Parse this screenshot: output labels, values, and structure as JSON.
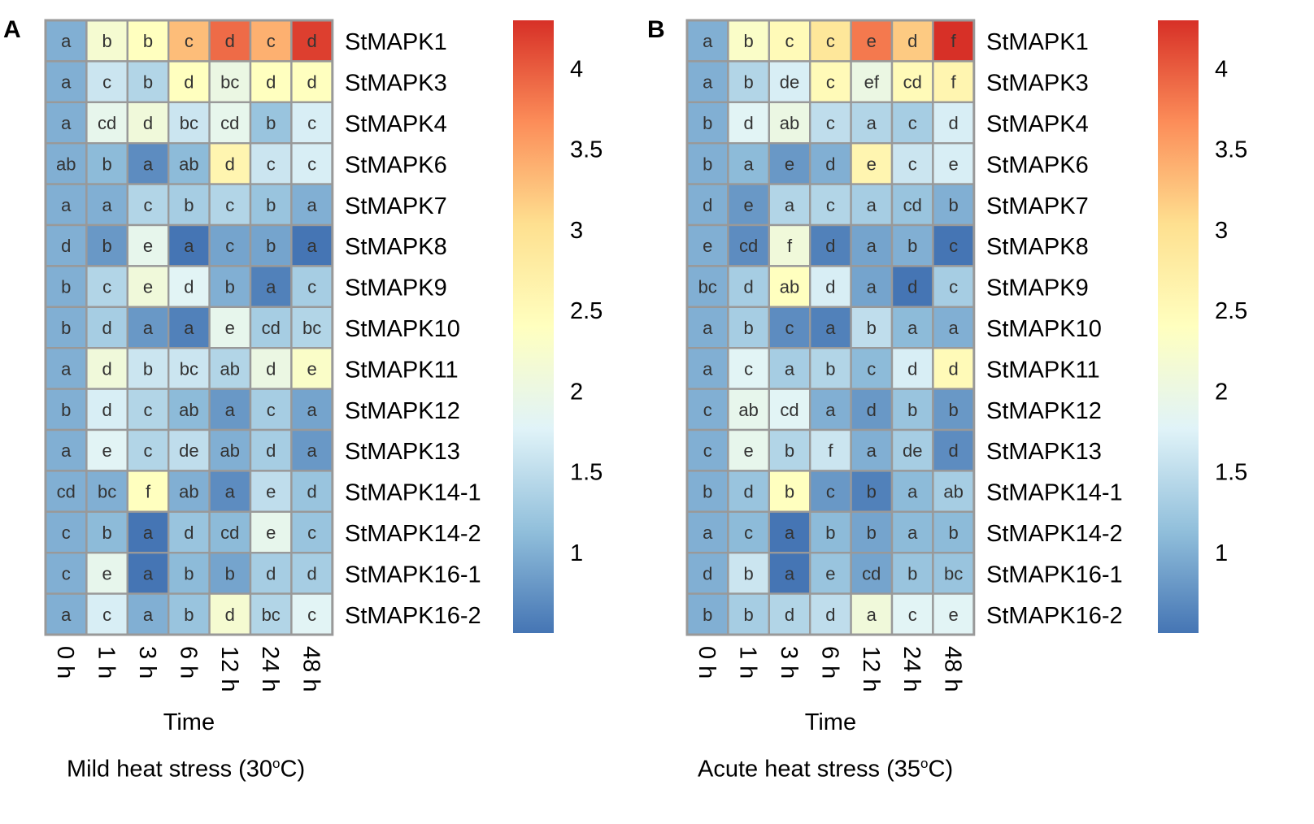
{
  "figure": {
    "panels": [
      {
        "letter": "A",
        "caption_prefix": "Mild heat stress (30",
        "caption_deg": "o",
        "caption_suffix": "C)"
      },
      {
        "letter": "B",
        "caption_prefix": "Acute heat stress (35",
        "caption_deg": "o",
        "caption_suffix": "C)"
      }
    ]
  },
  "chart_data": [
    {
      "type": "heatmap",
      "title": "Mild heat stress (30°C)",
      "xlabel": "Time",
      "ylabel": "",
      "x": [
        "0 h",
        "1 h",
        "3 h",
        "6 h",
        "12 h",
        "24 h",
        "48 h"
      ],
      "y": [
        "StMAPK1",
        "StMAPK3",
        "StMAPK4",
        "StMAPK6",
        "StMAPK7",
        "StMAPK8",
        "StMAPK9",
        "StMAPK10",
        "StMAPK11",
        "StMAPK12",
        "StMAPK13",
        "StMAPK14-1",
        "StMAPK14-2",
        "StMAPK16-1",
        "StMAPK16-2"
      ],
      "values": [
        [
          1.0,
          2.2,
          2.4,
          3.3,
          3.9,
          3.4,
          4.2
        ],
        [
          1.0,
          1.6,
          1.4,
          2.4,
          2.0,
          2.4,
          2.4
        ],
        [
          1.0,
          1.9,
          2.1,
          1.6,
          1.9,
          1.2,
          1.7
        ],
        [
          1.0,
          1.1,
          0.7,
          1.1,
          2.6,
          1.6,
          1.7
        ],
        [
          1.0,
          1.0,
          1.4,
          1.3,
          1.4,
          1.2,
          1.0
        ],
        [
          1.0,
          0.8,
          1.9,
          0.5,
          0.9,
          0.9,
          0.5
        ],
        [
          1.0,
          1.4,
          2.1,
          1.8,
          1.0,
          0.6,
          1.3
        ],
        [
          1.0,
          1.3,
          0.8,
          0.6,
          1.9,
          1.3,
          1.4
        ],
        [
          1.0,
          2.1,
          1.6,
          1.6,
          1.4,
          2.0,
          2.3
        ],
        [
          1.0,
          1.7,
          1.4,
          1.1,
          0.8,
          1.3,
          0.9
        ],
        [
          1.0,
          1.8,
          1.4,
          1.5,
          1.0,
          1.3,
          0.8
        ],
        [
          1.0,
          1.0,
          2.4,
          1.0,
          0.7,
          1.5,
          1.2
        ],
        [
          1.0,
          1.1,
          0.5,
          1.2,
          1.1,
          1.9,
          1.2
        ],
        [
          1.0,
          1.9,
          0.5,
          1.1,
          0.9,
          1.3,
          1.3
        ],
        [
          1.0,
          1.7,
          1.0,
          1.2,
          2.2,
          1.4,
          1.8
        ]
      ],
      "annotations": [
        [
          "a",
          "b",
          "b",
          "c",
          "d",
          "c",
          "d"
        ],
        [
          "a",
          "c",
          "b",
          "d",
          "bc",
          "d",
          "d"
        ],
        [
          "a",
          "cd",
          "d",
          "bc",
          "cd",
          "b",
          "c"
        ],
        [
          "ab",
          "b",
          "a",
          "ab",
          "d",
          "c",
          "c"
        ],
        [
          "a",
          "a",
          "c",
          "b",
          "c",
          "b",
          "a"
        ],
        [
          "d",
          "b",
          "e",
          "a",
          "c",
          "b",
          "a"
        ],
        [
          "b",
          "c",
          "e",
          "d",
          "b",
          "a",
          "c"
        ],
        [
          "b",
          "d",
          "a",
          "a",
          "e",
          "cd",
          "bc"
        ],
        [
          "a",
          "d",
          "b",
          "bc",
          "ab",
          "d",
          "e"
        ],
        [
          "b",
          "d",
          "c",
          "ab",
          "a",
          "c",
          "a"
        ],
        [
          "a",
          "e",
          "c",
          "de",
          "ab",
          "d",
          "a"
        ],
        [
          "cd",
          "bc",
          "f",
          "ab",
          "a",
          "e",
          "d"
        ],
        [
          "c",
          "b",
          "a",
          "d",
          "cd",
          "e",
          "c"
        ],
        [
          "c",
          "e",
          "a",
          "b",
          "b",
          "d",
          "d"
        ],
        [
          "a",
          "c",
          "a",
          "b",
          "d",
          "bc",
          "c"
        ]
      ],
      "colorbar": {
        "range": [
          0.5,
          4.3
        ],
        "ticks": [
          1,
          1.5,
          2,
          2.5,
          3,
          3.5,
          4
        ],
        "tick_labels": [
          "1",
          "1.5",
          "2",
          "2.5",
          "3",
          "3.5",
          "4"
        ],
        "colors": [
          "#4575b4",
          "#91bfdb",
          "#e0f3f8",
          "#ffffbf",
          "#fee090",
          "#fc8d59",
          "#d73027"
        ]
      }
    },
    {
      "type": "heatmap",
      "title": "Acute heat stress (35°C)",
      "xlabel": "Time",
      "ylabel": "",
      "x": [
        "0 h",
        "1 h",
        "3 h",
        "6 h",
        "12 h",
        "24 h",
        "48 h"
      ],
      "y": [
        "StMAPK1",
        "StMAPK3",
        "StMAPK4",
        "StMAPK6",
        "StMAPK7",
        "StMAPK8",
        "StMAPK9",
        "StMAPK10",
        "StMAPK11",
        "StMAPK12",
        "StMAPK13",
        "StMAPK14-1",
        "StMAPK14-2",
        "StMAPK16-1",
        "StMAPK16-2"
      ],
      "values": [
        [
          1.0,
          2.3,
          2.5,
          2.9,
          3.8,
          3.2,
          4.3
        ],
        [
          1.0,
          1.4,
          1.7,
          2.5,
          2.0,
          2.5,
          2.6
        ],
        [
          1.0,
          1.8,
          2.0,
          1.5,
          1.4,
          1.3,
          1.7
        ],
        [
          1.0,
          1.1,
          0.8,
          1.0,
          2.6,
          1.6,
          1.7
        ],
        [
          1.0,
          0.8,
          1.4,
          1.4,
          1.3,
          1.2,
          1.0
        ],
        [
          1.0,
          0.7,
          2.1,
          0.6,
          0.9,
          1.0,
          0.5
        ],
        [
          1.0,
          1.3,
          2.4,
          1.7,
          0.9,
          0.5,
          1.3
        ],
        [
          1.0,
          1.3,
          0.7,
          0.6,
          1.5,
          1.1,
          1.0
        ],
        [
          1.0,
          1.8,
          1.3,
          1.4,
          1.1,
          1.7,
          2.5
        ],
        [
          1.0,
          1.9,
          1.8,
          1.0,
          0.8,
          1.2,
          0.8
        ],
        [
          1.0,
          1.9,
          1.4,
          1.6,
          1.0,
          1.3,
          0.7
        ],
        [
          1.0,
          1.2,
          2.4,
          0.8,
          0.6,
          1.1,
          1.3
        ],
        [
          1.0,
          1.1,
          0.5,
          1.1,
          0.9,
          1.1,
          1.1
        ],
        [
          1.0,
          1.6,
          0.5,
          1.2,
          0.9,
          1.2,
          1.2
        ],
        [
          1.0,
          1.3,
          1.4,
          1.5,
          2.1,
          1.8,
          1.8
        ]
      ],
      "annotations": [
        [
          "a",
          "b",
          "c",
          "c",
          "e",
          "d",
          "f"
        ],
        [
          "a",
          "b",
          "de",
          "c",
          "ef",
          "cd",
          "f"
        ],
        [
          "b",
          "d",
          "ab",
          "c",
          "a",
          "c",
          "d"
        ],
        [
          "b",
          "a",
          "e",
          "d",
          "e",
          "c",
          "e"
        ],
        [
          "d",
          "e",
          "a",
          "c",
          "a",
          "cd",
          "b"
        ],
        [
          "e",
          "cd",
          "f",
          "d",
          "a",
          "b",
          "c"
        ],
        [
          "bc",
          "d",
          "ab",
          "d",
          "a",
          "d",
          "c"
        ],
        [
          "a",
          "b",
          "c",
          "a",
          "b",
          "a",
          "a"
        ],
        [
          "a",
          "c",
          "a",
          "b",
          "c",
          "d",
          "d"
        ],
        [
          "c",
          "ab",
          "cd",
          "a",
          "d",
          "b",
          "b"
        ],
        [
          "c",
          "e",
          "b",
          "f",
          "a",
          "de",
          "d"
        ],
        [
          "b",
          "d",
          "b",
          "c",
          "b",
          "a",
          "ab"
        ],
        [
          "a",
          "c",
          "a",
          "b",
          "b",
          "a",
          "b"
        ],
        [
          "d",
          "b",
          "a",
          "e",
          "cd",
          "b",
          "bc"
        ],
        [
          "b",
          "b",
          "d",
          "d",
          "a",
          "c",
          "e"
        ]
      ],
      "colorbar": {
        "range": [
          0.5,
          4.3
        ],
        "ticks": [
          1,
          1.5,
          2,
          2.5,
          3,
          3.5,
          4
        ],
        "tick_labels": [
          "1",
          "1.5",
          "2",
          "2.5",
          "3",
          "3.5",
          "4"
        ],
        "colors": [
          "#4575b4",
          "#91bfdb",
          "#e0f3f8",
          "#ffffbf",
          "#fee090",
          "#fc8d59",
          "#d73027"
        ]
      }
    }
  ]
}
